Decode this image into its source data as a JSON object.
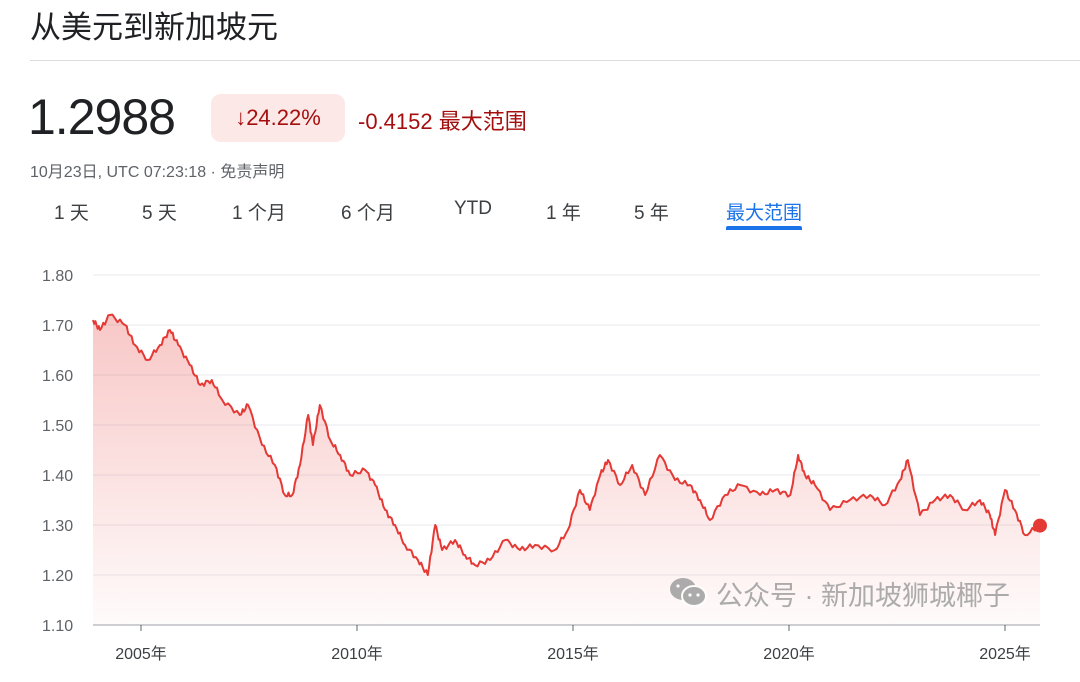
{
  "header": {
    "title": "从美元到新加坡元"
  },
  "quote": {
    "price": "1.2988",
    "change_percent": "24.22%",
    "direction_icon": "arrow-down-icon",
    "change_abs": "-0.4152",
    "range_label": "最大范围",
    "timestamp": "10月23日, UTC 07:23:18 · 免责声明",
    "negative_color": "#a50e0e",
    "badge_bg": "#fce8e6"
  },
  "tabs": [
    {
      "label": "1 天",
      "active": false
    },
    {
      "label": "5 天",
      "active": false
    },
    {
      "label": "1 个月",
      "active": false
    },
    {
      "label": "6 个月",
      "active": false
    },
    {
      "label": "YTD",
      "active": false
    },
    {
      "label": "1 年",
      "active": false
    },
    {
      "label": "5 年",
      "active": false
    },
    {
      "label": "最大范围",
      "active": true
    }
  ],
  "watermark": {
    "icon": "wechat-icon",
    "text": "公众号 · 新加坡狮城椰子"
  },
  "chart_data": {
    "type": "area",
    "line_color": "#e53935",
    "grid": true,
    "ylim": [
      1.1,
      1.8
    ],
    "xlim": [
      2003.89,
      2025.81
    ],
    "y_ticks": [
      "1.80",
      "1.70",
      "1.60",
      "1.50",
      "1.40",
      "1.30",
      "1.20",
      "1.10"
    ],
    "x_ticks": [
      {
        "value": 2005,
        "label": "2005年"
      },
      {
        "value": 2010,
        "label": "2010年"
      },
      {
        "value": 2015,
        "label": "2015年"
      },
      {
        "value": 2020,
        "label": "2020年"
      },
      {
        "value": 2025,
        "label": "2025年"
      }
    ],
    "series": [
      {
        "x": [
          2003.89,
          2004.05,
          2004.28,
          2004.63,
          2004.86,
          2005.16,
          2005.44,
          2005.67,
          2005.86,
          2006.13,
          2006.37,
          2006.64,
          2006.88,
          2007.29,
          2007.48,
          2007.8,
          2008.1,
          2008.33,
          2008.5,
          2008.68,
          2008.87,
          2008.98,
          2009.14,
          2009.38,
          2009.61,
          2009.84,
          2010.19,
          2010.42,
          2010.65,
          2010.88,
          2011.11,
          2011.41,
          2011.64,
          2011.81,
          2011.97,
          2012.27,
          2012.5,
          2012.73,
          2013.08,
          2013.43,
          2013.77,
          2014.12,
          2014.58,
          2014.88,
          2015.16,
          2015.39,
          2015.63,
          2015.81,
          2016.09,
          2016.37,
          2016.67,
          2017.01,
          2017.36,
          2017.71,
          2017.94,
          2018.17,
          2018.52,
          2018.87,
          2019.33,
          2019.68,
          2020.03,
          2020.21,
          2020.37,
          2020.6,
          2020.95,
          2021.41,
          2021.88,
          2022.22,
          2022.57,
          2022.75,
          2023.03,
          2023.38,
          2023.73,
          2024.07,
          2024.42,
          2024.65,
          2024.77,
          2025.0,
          2025.23,
          2025.46,
          2025.81
        ],
        "y": [
          1.71,
          1.69,
          1.72,
          1.7,
          1.66,
          1.63,
          1.66,
          1.69,
          1.66,
          1.62,
          1.58,
          1.59,
          1.55,
          1.52,
          1.54,
          1.46,
          1.42,
          1.36,
          1.36,
          1.42,
          1.52,
          1.46,
          1.54,
          1.47,
          1.44,
          1.4,
          1.41,
          1.38,
          1.33,
          1.3,
          1.26,
          1.23,
          1.2,
          1.3,
          1.25,
          1.27,
          1.24,
          1.22,
          1.23,
          1.27,
          1.25,
          1.26,
          1.25,
          1.29,
          1.37,
          1.33,
          1.4,
          1.43,
          1.38,
          1.42,
          1.36,
          1.44,
          1.39,
          1.38,
          1.35,
          1.31,
          1.36,
          1.38,
          1.36,
          1.37,
          1.36,
          1.44,
          1.4,
          1.38,
          1.33,
          1.35,
          1.36,
          1.34,
          1.39,
          1.43,
          1.32,
          1.35,
          1.36,
          1.33,
          1.35,
          1.32,
          1.28,
          1.37,
          1.33,
          1.28,
          1.2988
        ]
      }
    ]
  }
}
